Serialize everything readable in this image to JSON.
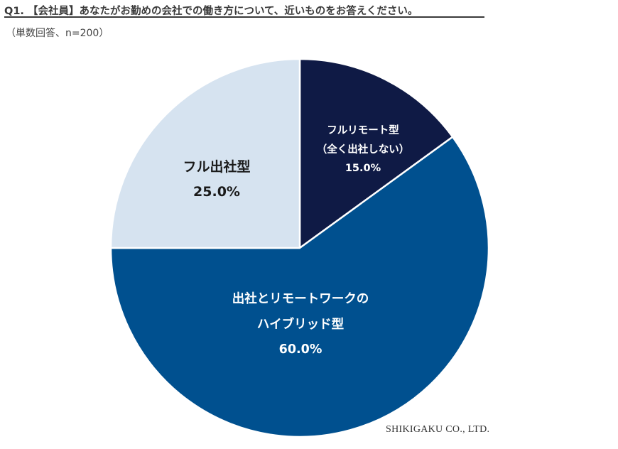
{
  "header": {
    "title": "Q1. 【会社員】あなたがお勤めの会社での働き方について、近いものをお答えください。",
    "subtitle": "（単数回答、n=200）"
  },
  "chart_data": {
    "type": "pie",
    "title": "Q1. 【会社員】あなたがお勤めの会社での働き方について、近いものをお答えください。",
    "subtitle": "（単数回答、n=200）",
    "start_angle": "12 o'clock, clockwise",
    "slices": [
      {
        "label": "フルリモート型（全く出社しない）",
        "value": 15.0,
        "color": "#0f1a45"
      },
      {
        "label": "出社とリモートワークのハイブリッド型",
        "value": 60.0,
        "color": "#00508f"
      },
      {
        "label": "フル出社型",
        "value": 25.0,
        "color": "#d6e3f0"
      }
    ],
    "legend": "none (labels inside slices)"
  },
  "labels": {
    "remote": {
      "line1": "フルリモート型",
      "line2": "（全く出社しない）",
      "pct": "15.0%"
    },
    "hybrid": {
      "line1": "出社とリモートワークの",
      "line2": "ハイブリッド型",
      "pct": "60.0%"
    },
    "office": {
      "line1": "フル出社型",
      "pct": "25.0%"
    }
  },
  "credit": "SHIKIGAKU CO., LTD."
}
